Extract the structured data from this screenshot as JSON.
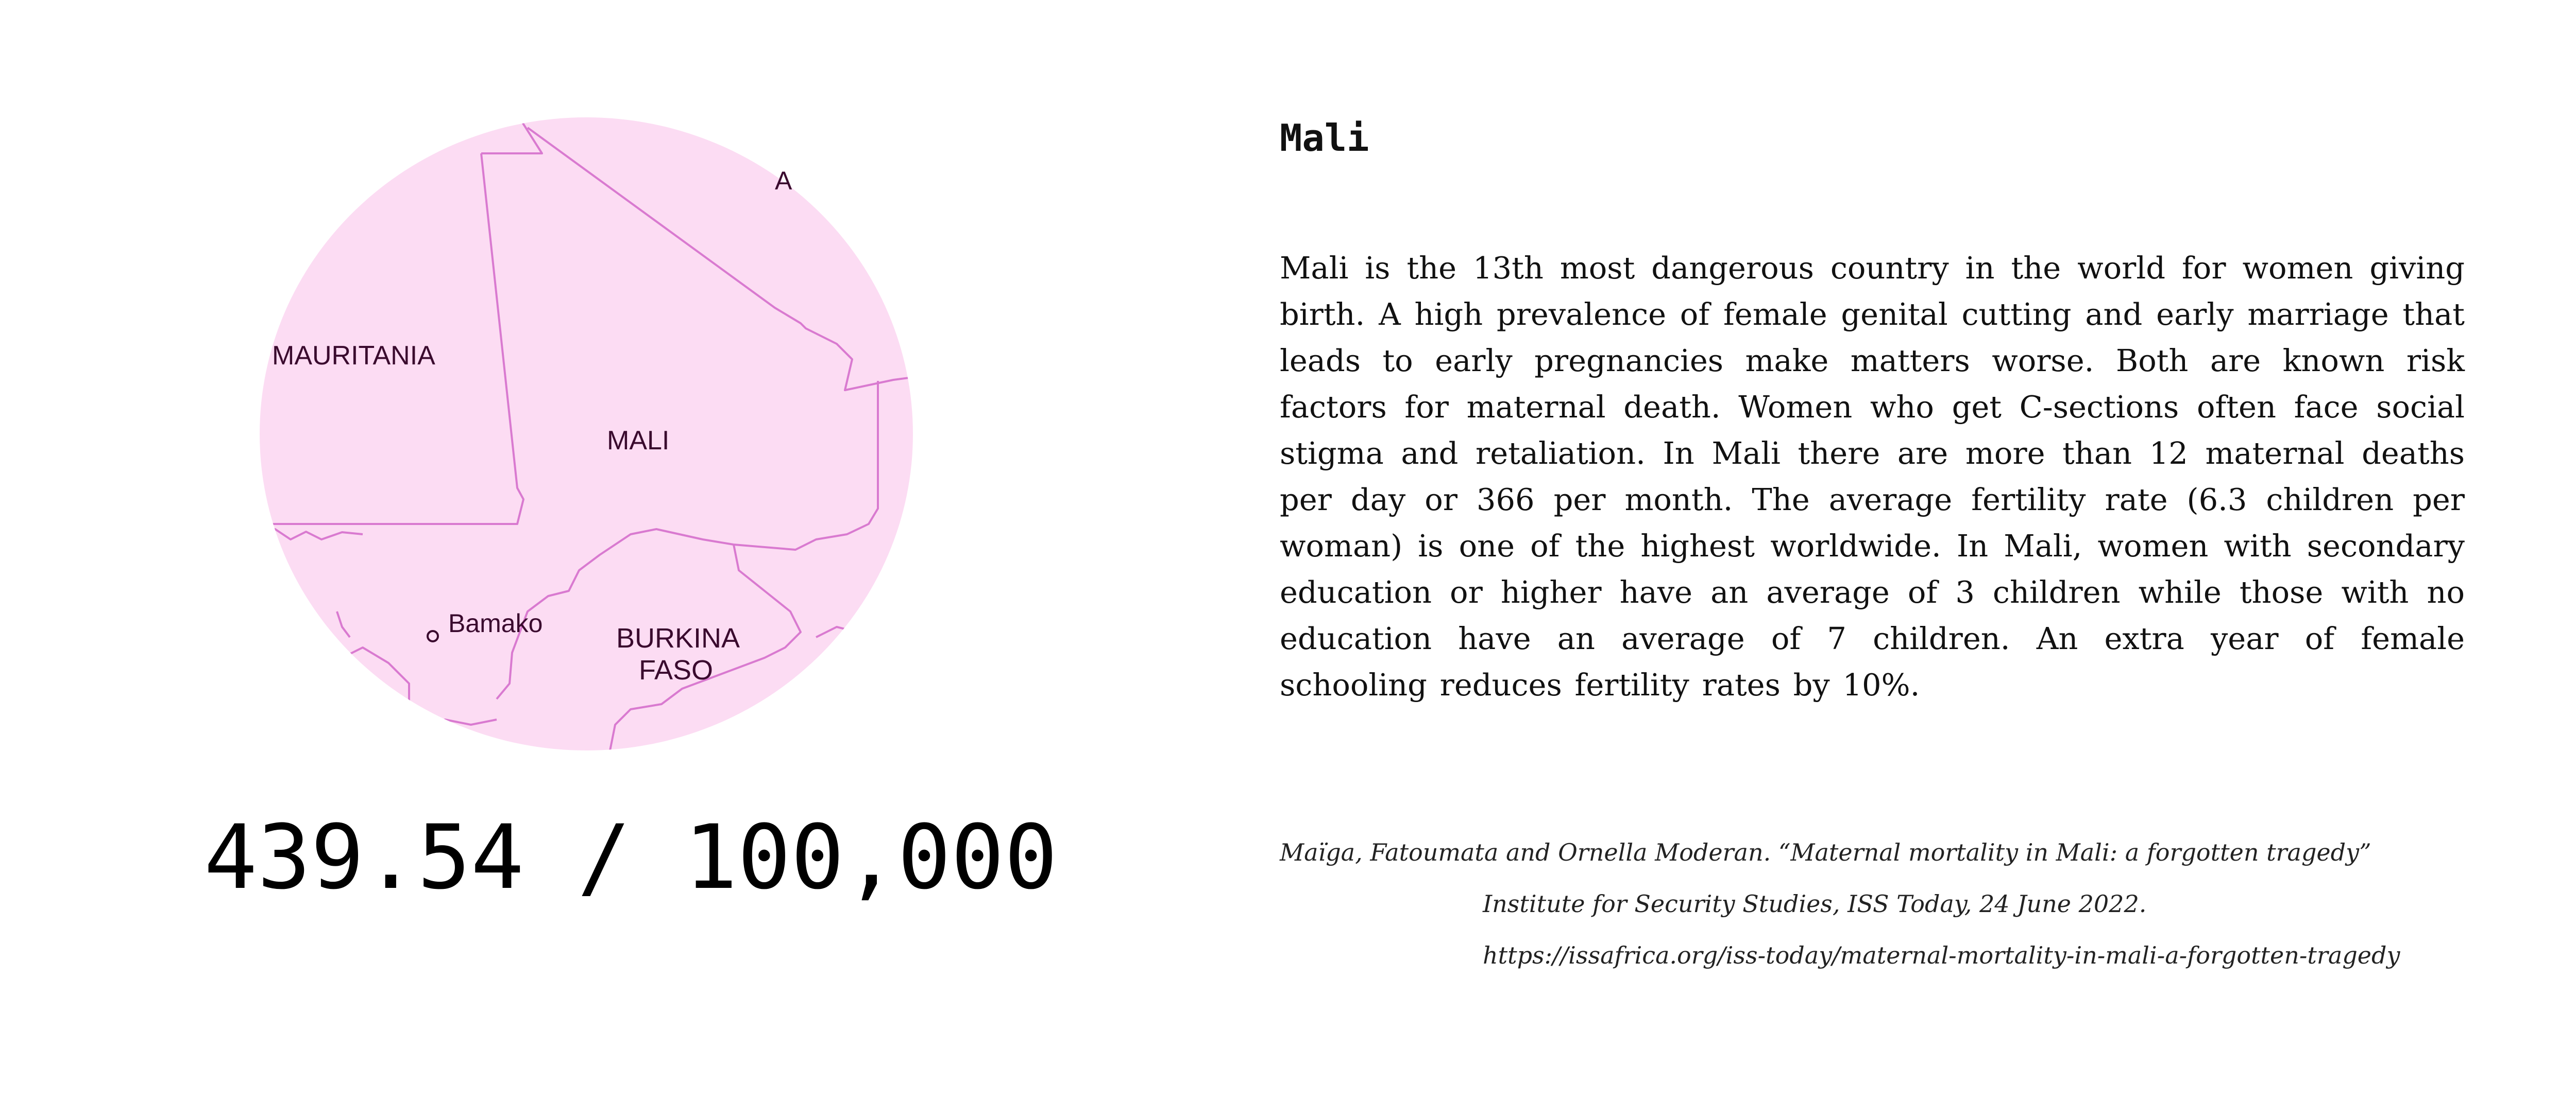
{
  "map": {
    "labels": {
      "mauritania": "MAURITANIA",
      "mali": "MALI",
      "bamako": "Bamako",
      "burkina_1": "BURKINA",
      "burkina_2": "FASO",
      "top_partial": "A"
    },
    "colors": {
      "land": "#fcdcf3",
      "border": "#d97ad0",
      "mark": "#f4a3e0"
    }
  },
  "rate": {
    "value": "439.54 / 100,000"
  },
  "country": {
    "title": "Mali",
    "description": "Mali is the 13th most dangerous country in the world for women giving birth. A high prevalence of female genital cutting and early marriage that leads to early pregnancies make matters worse. Both are known risk factors for maternal death. Women who get C-sections often face social stigma and retaliation. In Mali there are more than 12 maternal deaths per day or 366 per month. The average fertility rate (6.3 children per woman) is one of the highest worldwide. In Mali, women with secondary education or higher have an average of 3 children while those with no education have an average of 7 children.  An extra year of female schooling reduces fertility rates by 10%."
  },
  "citation": {
    "line1": "Maïga, Fatoumata and Ornella Moderan. “Maternal mortality in Mali: a forgotten tragedy”",
    "line2": "Institute for Security Studies, ISS Today, 24 June 2022.",
    "line3": "https://issafrica.org/iss-today/maternal-mortality-in-mali-a-forgotten-tragedy"
  }
}
